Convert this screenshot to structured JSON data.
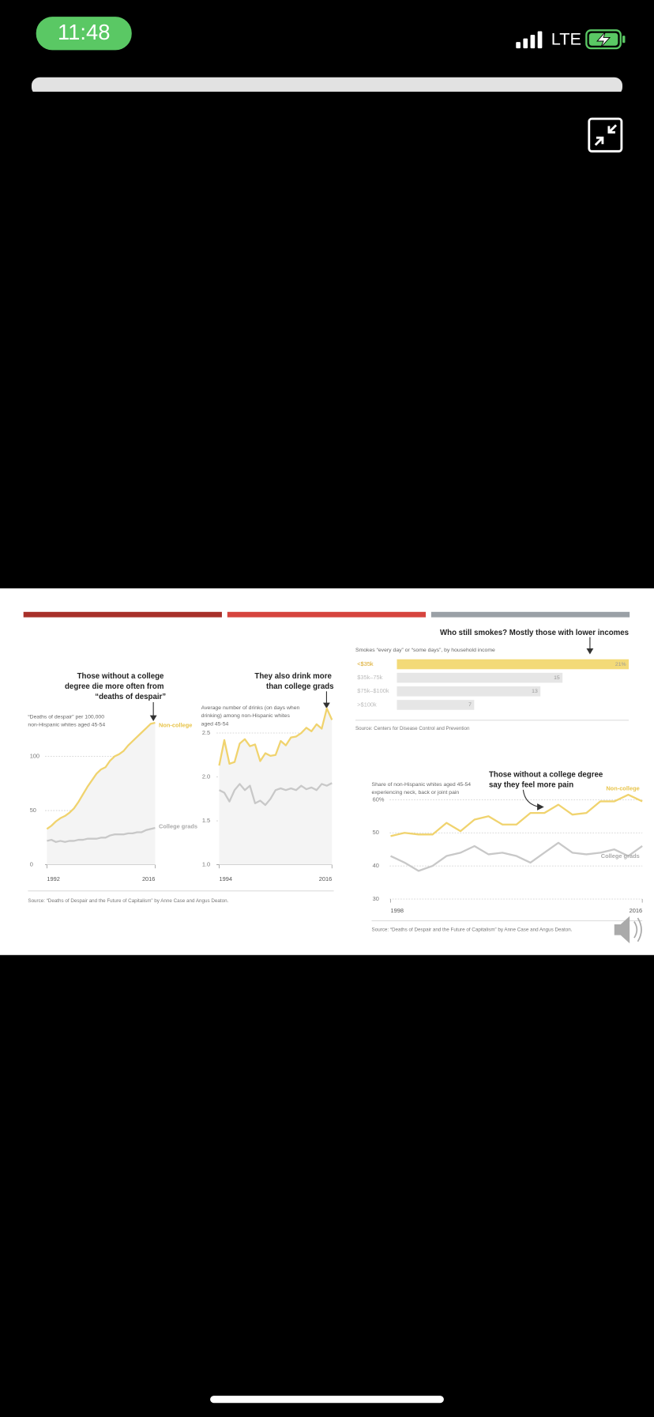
{
  "status_bar": {
    "time": "11:48",
    "network": "LTE"
  },
  "chart_data": [
    {
      "type": "line",
      "title": "Those without a college degree die more often from “deaths of despair”",
      "subtitle": "“Deaths of despair” per 100,000 non-Hispanic whites aged 45-54",
      "x": [
        1992,
        1993,
        1994,
        1995,
        1996,
        1997,
        1998,
        1999,
        2000,
        2001,
        2002,
        2003,
        2004,
        2005,
        2006,
        2007,
        2008,
        2009,
        2010,
        2011,
        2012,
        2013,
        2014,
        2015,
        2016
      ],
      "xlim": [
        1992,
        2016
      ],
      "xticks": [
        1992,
        2016
      ],
      "ylim": [
        0,
        135
      ],
      "yticks": [
        0,
        50,
        100
      ],
      "grid": true,
      "series": [
        {
          "name": "Non-college",
          "color": "#f0d36e",
          "values": [
            33,
            36,
            40,
            43,
            45,
            48,
            52,
            58,
            65,
            72,
            78,
            84,
            88,
            90,
            96,
            100,
            102,
            105,
            110,
            114,
            118,
            122,
            126,
            130,
            131
          ]
        },
        {
          "name": "College grads",
          "color": "#c8c8c8",
          "values": [
            22,
            23,
            21,
            22,
            21,
            22,
            22,
            23,
            23,
            24,
            24,
            24,
            25,
            25,
            27,
            28,
            28,
            28,
            29,
            29,
            30,
            30,
            32,
            33,
            34
          ]
        }
      ],
      "source": "Source: “Deaths of Despair and the Future of Capitalism” by Anne Case and Angus Deaton."
    },
    {
      "type": "line",
      "title": "They also drink more than college grads",
      "subtitle": "Average number of drinks (on days when drinking) among non-Hispanic whites aged 45-54",
      "x": [
        1994,
        1995,
        1996,
        1997,
        1998,
        1999,
        2000,
        2001,
        2002,
        2003,
        2004,
        2005,
        2006,
        2007,
        2008,
        2009,
        2010,
        2011,
        2012,
        2013,
        2014,
        2015,
        2016
      ],
      "xlim": [
        1994,
        2016
      ],
      "xticks": [
        1994,
        2016
      ],
      "ylim": [
        1,
        2.8
      ],
      "yticks": [
        {
          "value": 1,
          "label": "1.0"
        },
        1.5,
        {
          "value": 2,
          "label": "2.0"
        },
        2.5
      ],
      "grid": true,
      "series": [
        {
          "color": "#f0d36e",
          "values": [
            2.13,
            2.42,
            2.15,
            2.17,
            2.38,
            2.43,
            2.35,
            2.37,
            2.18,
            2.27,
            2.24,
            2.25,
            2.41,
            2.36,
            2.45,
            2.46,
            2.5,
            2.56,
            2.52,
            2.6,
            2.55,
            2.78,
            2.65
          ]
        },
        {
          "color": "#c8c8c8",
          "values": [
            1.85,
            1.82,
            1.72,
            1.85,
            1.92,
            1.85,
            1.9,
            1.7,
            1.73,
            1.68,
            1.75,
            1.85,
            1.87,
            1.85,
            1.87,
            1.85,
            1.9,
            1.86,
            1.88,
            1.85,
            1.92,
            1.9,
            1.93
          ]
        }
      ]
    },
    {
      "type": "bar",
      "title": "Who still smokes? Mostly those with lower incomes",
      "subtitle": "Smokes “every day” or “some days”, by household income",
      "categories": [
        "<$35k",
        "$35k–75k",
        "$75k–$100k",
        ">$100k"
      ],
      "values": [
        21,
        15,
        13,
        7
      ],
      "value_labels": [
        "21%",
        "15",
        "13",
        "7"
      ],
      "colors": [
        "#f3da78",
        "#e6e6e6",
        "#e6e6e6",
        "#e6e6e6"
      ],
      "source": "Source: Centers for Disease Control and Prevention"
    },
    {
      "type": "line",
      "title": "Those without a college degree say they feel more pain",
      "subtitle": "Share of non-Hispanic whites aged 45-54 experiencing neck, back or joint pain",
      "x": [
        1998,
        1999,
        2000,
        2001,
        2002,
        2003,
        2004,
        2005,
        2006,
        2007,
        2008,
        2009,
        2010,
        2011,
        2012,
        2013,
        2014,
        2015,
        2016
      ],
      "xlim": [
        1998,
        2016
      ],
      "xticks": [
        1998,
        2016
      ],
      "ylim": [
        30,
        63
      ],
      "yticks": [
        30,
        40,
        50,
        {
          "value": 60,
          "label": "60%"
        }
      ],
      "grid": true,
      "series": [
        {
          "name": "Non-college",
          "color": "#f0d36e",
          "values": [
            49,
            50,
            49.5,
            49.5,
            53,
            50.5,
            54,
            55,
            52.5,
            52.5,
            56,
            56,
            58.5,
            55.5,
            56,
            59.5,
            59.5,
            61.5,
            59.5
          ]
        },
        {
          "name": "College grads",
          "color": "#c8c8c8",
          "values": [
            43,
            41,
            38.5,
            40,
            43,
            44,
            46,
            43.5,
            44,
            43,
            41,
            44,
            47,
            44,
            43.5,
            44,
            45,
            43,
            46
          ]
        }
      ],
      "source": "Source: “Deaths of Despair and the Future of Capitalism” by Anne Case and Angus Deaton."
    }
  ]
}
